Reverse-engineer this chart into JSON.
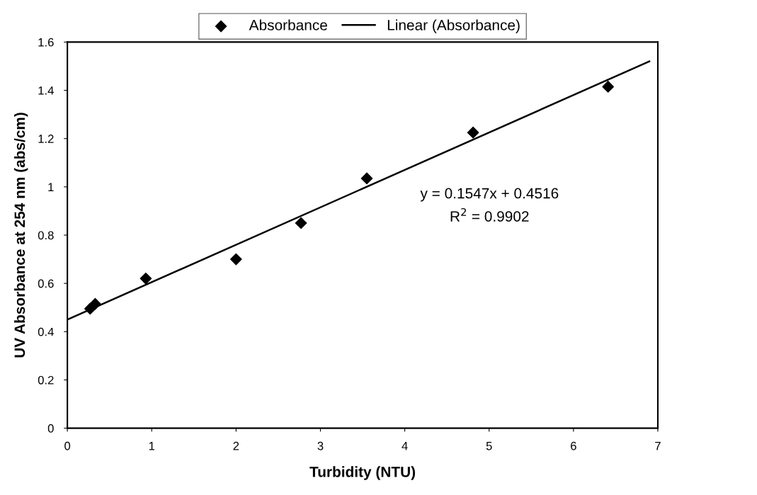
{
  "chart_data": {
    "type": "scatter",
    "xlabel": "Turbidity (NTU)",
    "ylabel": "UV Absorbance at 254 nm (abs/cm)",
    "xlim": [
      0,
      7
    ],
    "xticks": [
      0,
      1,
      2,
      3,
      4,
      5,
      6,
      7
    ],
    "ylim": [
      0,
      1.6
    ],
    "yticks": [
      0,
      0.2,
      0.4,
      0.6,
      0.8,
      1,
      1.2,
      1.4,
      1.6
    ],
    "grid": false,
    "legend": "top",
    "series": [
      {
        "name": "Absorbance",
        "marker": "diamond",
        "color": "#000000",
        "x": [
          0.27,
          0.33,
          0.93,
          2.0,
          2.77,
          3.55,
          4.81,
          6.41
        ],
        "values": [
          0.495,
          0.515,
          0.62,
          0.7,
          0.85,
          1.035,
          1.225,
          1.415
        ]
      },
      {
        "name": "Linear (Absorbance)",
        "type": "line",
        "color": "#000000",
        "x": [
          0,
          6.9
        ],
        "values": [
          0.45,
          1.52
        ]
      }
    ],
    "annotations": [
      "y = 0.1547x + 0.4516",
      "R$^{2}$ = 0.9902"
    ]
  }
}
